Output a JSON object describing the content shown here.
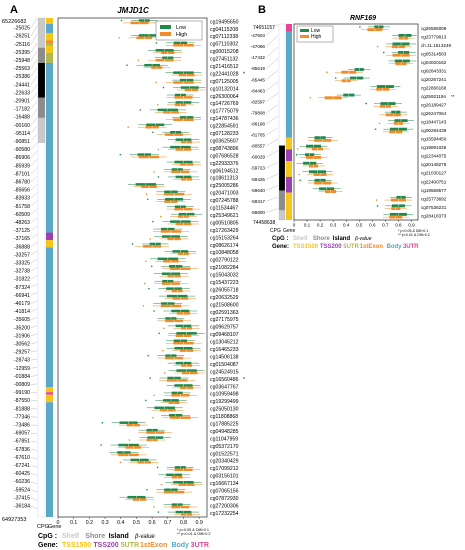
{
  "panels": {
    "a": {
      "letter": "A",
      "gene": "JMJD1C",
      "top_coord": "65226682",
      "bottom_coord": "64927353",
      "cpg_axis_label": "CPG",
      "gene_axis_label": "Gene",
      "x_axis_label": "β-value",
      "ticks": [
        "0",
        "0.1",
        "0.2",
        "0.3",
        "0.4",
        "0.5",
        "0.6",
        "0.7",
        "0.8",
        "0.9"
      ],
      "significance_note_1": "* p<0.05 & Diff>0.1",
      "significance_note_2": "** p<0.01 & Diff>0.2",
      "coords": [
        "-25025",
        "-26251",
        "-25116",
        "-25395",
        "-25948",
        "-25563",
        "-25386",
        "-24441",
        "-22633",
        "-20901",
        "-17182",
        "-16488",
        "-00160",
        "-95114",
        "-90851",
        "-90580",
        "-86906",
        "-85939",
        "-87101",
        "-86780",
        "-85656",
        "-83933",
        "-81758",
        "-60509",
        "-48263",
        "-37125",
        "-37165",
        "-36888",
        "-33257",
        "-33325",
        "-32738",
        "-31822",
        "-87324",
        "-66941",
        "-46179",
        "-41814",
        "-35605",
        "-35200",
        "-31906",
        "-30562",
        "-29257",
        "-28743",
        "-12959",
        "-01884",
        "-00809",
        "-99190",
        "-87550",
        "-81888",
        "-77346",
        "-73486",
        "-69057",
        "-67851",
        "-67836",
        "-67610",
        "-67241",
        "-60425",
        "-60236",
        "-59524",
        "-37415",
        "-36184"
      ],
      "cpgs": [
        "cg19495650",
        "cg04115208",
        "cg07112338",
        "cg07110302",
        "cg00015208",
        "cg27451132",
        "cg21416512",
        "cg22441028",
        "cg07125005",
        "cg10132014",
        "cg26300064",
        "cg14726769",
        "cg17775079",
        "cg14787436",
        "cg22854591",
        "cg07128233",
        "cg03625607",
        "cg08743896",
        "cg07686528",
        "cg22933376",
        "cg06194512",
        "cg18611313",
        "cg25005286",
        "cg20471003",
        "cg07245788",
        "cg11534467",
        "cg25349621",
        "cg00510805",
        "cg17263429",
        "cg15153264",
        "cg08626174",
        "cg10848058",
        "cg02790122",
        "cg21082284",
        "cg15043032",
        "cg15437223",
        "cg26055718",
        "cg20632529",
        "cg21508600",
        "cg02591363",
        "cg27175975",
        "cg09629757",
        "cg09468107",
        "cg13045212",
        "cg16465233",
        "cg14506138",
        "cg01504087",
        "cg24524915",
        "cg16560486",
        "cg03647767",
        "cg10959498",
        "cg19299499",
        "cg25050130",
        "cg11808868",
        "cg17885225",
        "cg04948285",
        "cg11047959",
        "cg05372170",
        "cg01522571",
        "cg20340429",
        "cg17099212",
        "cg03156101",
        "cg16667134",
        "cg07065156",
        "cg07872930",
        "cg27200306",
        "cg17232254"
      ],
      "markers": {
        "7": "*",
        "48": "*"
      }
    },
    "b": {
      "letter": "B",
      "gene": "RNF169",
      "top_coord": "74651157",
      "bottom_coord": "74458638",
      "cpg_axis_label": "CPG",
      "gene_axis_label": "Gene",
      "x_axis_label": "β-value",
      "ticks": [
        "0",
        "0.1",
        "0.2",
        "0.3",
        "0.4",
        "0.5",
        "0.6",
        "0.7",
        "0.8",
        "0.9"
      ],
      "significance_note_1": "* p<0.05 & Diff>0.1",
      "significance_note_2": "** p<0.01 & Diff>0.2",
      "coords": [
        "-47503",
        "-47066",
        "-17432",
        "-85619",
        "-65445",
        "-84463",
        "-82597",
        "-79808",
        "-86198",
        "-81705",
        "-80557",
        "-60029",
        "-59723",
        "-59425",
        "-59640",
        "-59317",
        "-58800"
      ],
      "cpgs": [
        "cg26585008",
        "cg23779813",
        "ch.11.1613249",
        "cg05314583",
        "cg04020162",
        "cg02843331",
        "cg20267241",
        "cg22866168",
        "cg25921194",
        "cg26189427",
        "cg26247064",
        "cg18447143",
        "cg00284438",
        "cg15594450",
        "cg19891026",
        "cg22344075",
        "cg20148278",
        "cg21030127",
        "cg22400751",
        "cg19568577",
        "cg25773692",
        "cg07536231",
        "cg28418373"
      ],
      "markers": {
        "8": "**"
      }
    }
  },
  "legend": {
    "low_label": "Low",
    "high_label": "High",
    "cpg_title": "CpG :",
    "cpg_items": [
      {
        "label": "Shelf",
        "color": "#c9c9c9"
      },
      {
        "label": "Shore",
        "color": "#8c8c8c"
      },
      {
        "label": "Island",
        "color": "#000000"
      }
    ],
    "gene_title": "Gene:",
    "gene_items": [
      {
        "label": "TSS1500",
        "color": "#f5c518"
      },
      {
        "label": "TSS200",
        "color": "#9b3fb5"
      },
      {
        "label": "5UTR",
        "color": "#b2b84a"
      },
      {
        "label": "1stExon",
        "color": "#f08a2c"
      },
      {
        "label": "Body",
        "color": "#5aa8c8"
      },
      {
        "label": "3UTR",
        "color": "#e8439a"
      }
    ]
  },
  "colors": {
    "low": "#1f8a4c",
    "high": "#f28c28"
  },
  "chart_data": [
    {
      "type": "box",
      "gene": "JMJD1C",
      "xlabel": "β-value",
      "xlim": [
        0,
        0.95
      ],
      "series": [
        {
          "name": "Low",
          "medians": [
            0.55,
            0.8,
            0.58,
            0.78,
            0.68,
            0.7,
            0.6,
            0.8,
            0.82,
            0.84,
            0.78,
            0.8,
            0.7,
            0.82,
            0.62,
            0.75,
            0.8,
            0.78,
            0.55,
            0.8,
            0.76,
            0.8,
            0.56,
            0.72,
            0.74,
            0.78,
            0.82,
            0.78,
            0.7,
            0.72,
            0.62,
            0.78,
            0.7,
            0.75,
            0.72,
            0.7,
            0.74,
            0.76,
            0.7,
            0.78,
            0.72,
            0.8,
            0.82,
            0.78,
            0.8,
            0.72,
            0.8,
            0.82,
            0.74,
            0.8,
            0.76,
            0.72,
            0.68,
            0.75,
            0.45,
            0.6,
            0.62,
            0.45,
            0.42,
            0.52,
            0.78,
            0.74,
            0.8,
            0.72,
            0.5,
            0.76,
            0.8
          ]
        },
        {
          "name": "High",
          "medians": [
            0.52,
            0.82,
            0.55,
            0.8,
            0.7,
            0.68,
            0.63,
            0.82,
            0.8,
            0.85,
            0.8,
            0.78,
            0.72,
            0.8,
            0.6,
            0.74,
            0.82,
            0.8,
            0.58,
            0.82,
            0.78,
            0.82,
            0.58,
            0.74,
            0.72,
            0.8,
            0.8,
            0.8,
            0.72,
            0.74,
            0.6,
            0.8,
            0.72,
            0.78,
            0.74,
            0.72,
            0.76,
            0.78,
            0.72,
            0.8,
            0.74,
            0.82,
            0.8,
            0.8,
            0.82,
            0.74,
            0.82,
            0.84,
            0.76,
            0.82,
            0.78,
            0.74,
            0.7,
            0.78,
            0.48,
            0.62,
            0.6,
            0.48,
            0.45,
            0.55,
            0.8,
            0.76,
            0.82,
            0.74,
            0.52,
            0.78,
            0.82
          ]
        }
      ]
    },
    {
      "type": "box",
      "gene": "RNF169",
      "xlabel": "β-value",
      "xlim": [
        0,
        0.95
      ],
      "series": [
        {
          "name": "Low",
          "medians": [
            0.65,
            0.85,
            0.82,
            0.84,
            0.83,
            0.5,
            0.48,
            0.7,
            0.42,
            0.72,
            0.78,
            0.82,
            0.8,
            0.2,
            0.15,
            0.12,
            0.12,
            0.18,
            0.2,
            0.25,
            0.82,
            0.8,
            0.8
          ]
        },
        {
          "name": "High",
          "medians": [
            0.62,
            0.84,
            0.8,
            0.82,
            0.82,
            0.42,
            0.4,
            0.68,
            0.3,
            0.7,
            0.76,
            0.8,
            0.78,
            0.22,
            0.18,
            0.15,
            0.15,
            0.2,
            0.22,
            0.28,
            0.8,
            0.78,
            0.78
          ]
        }
      ]
    }
  ]
}
